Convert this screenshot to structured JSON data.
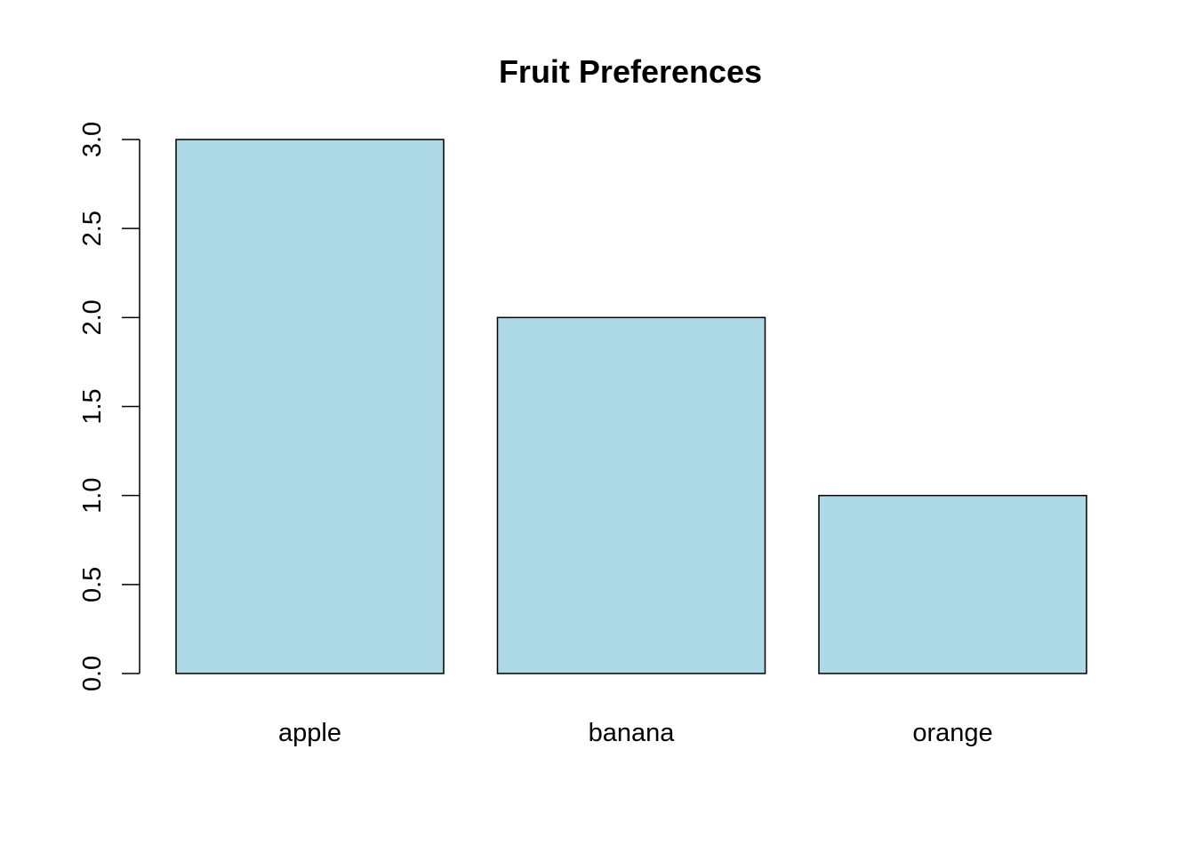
{
  "chart_data": {
    "type": "bar",
    "title": "Fruit Preferences",
    "xlabel": "",
    "ylabel": "",
    "categories": [
      "apple",
      "banana",
      "orange"
    ],
    "values": [
      3,
      2,
      1
    ],
    "ylim": [
      0,
      3
    ],
    "yticks": [
      0,
      0.5,
      1,
      1.5,
      2,
      2.5,
      3
    ],
    "ytick_labels": [
      "0.0",
      "0.5",
      "1.0",
      "1.5",
      "2.0",
      "2.5",
      "3.0"
    ],
    "bar_color": "#add8e6",
    "grid": false,
    "legend": "none"
  }
}
